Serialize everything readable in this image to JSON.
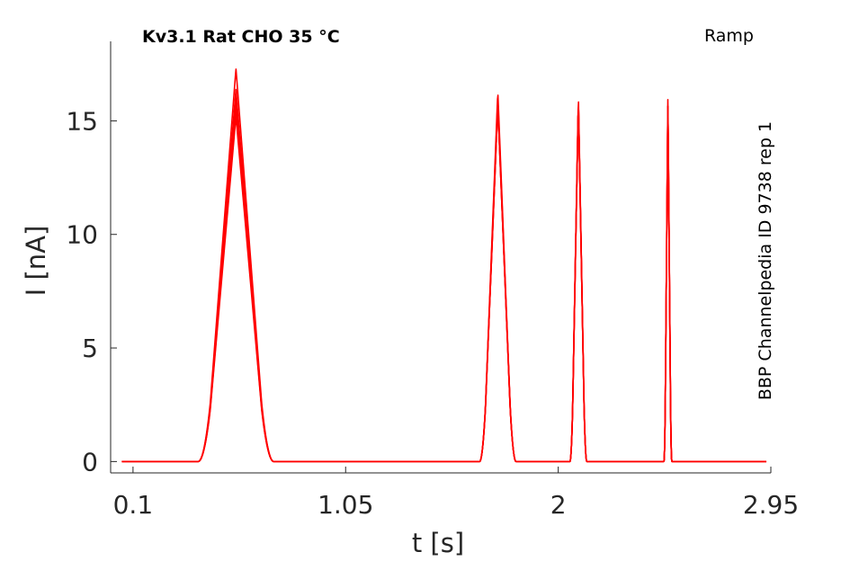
{
  "chart_data": {
    "type": "line",
    "title": "Kv3.1  Rat  CHO  35 °C",
    "protocol_label": "Ramp",
    "side_label": "BBP Channelpedia ID 9738 rep 1",
    "xlabel": "t [s]",
    "ylabel": "I [nA]",
    "xlim": [
      0.0,
      2.95
    ],
    "ylim": [
      -0.5,
      18.5
    ],
    "xticks": [
      0.1,
      1.05,
      2,
      2.95
    ],
    "xtick_labels": [
      "0.1",
      "1.05",
      "2",
      "2.95"
    ],
    "yticks": [
      0,
      5,
      10,
      15
    ],
    "ytick_labels": [
      "0",
      "5",
      "10",
      "15"
    ],
    "line_color": "#ff0000",
    "baseline": 0,
    "x_start": 0.05,
    "x_end": 2.93,
    "grid": false,
    "legend": false,
    "peaks": [
      {
        "center": 0.56,
        "half_width": 0.135,
        "onset_x": 0.42,
        "peak_values": [
          17.3,
          16.4,
          16.0,
          15.6,
          15.2
        ]
      },
      {
        "center": 1.73,
        "half_width": 0.065,
        "onset_x": 1.66,
        "peak_values": [
          16.3,
          16.0,
          15.7
        ]
      },
      {
        "center": 2.09,
        "half_width": 0.03,
        "onset_x": 2.05,
        "peak_values": [
          16.2,
          15.9
        ]
      },
      {
        "center": 2.49,
        "half_width": 0.014,
        "onset_x": 2.47,
        "peak_values": [
          16.2,
          15.9
        ]
      }
    ]
  }
}
